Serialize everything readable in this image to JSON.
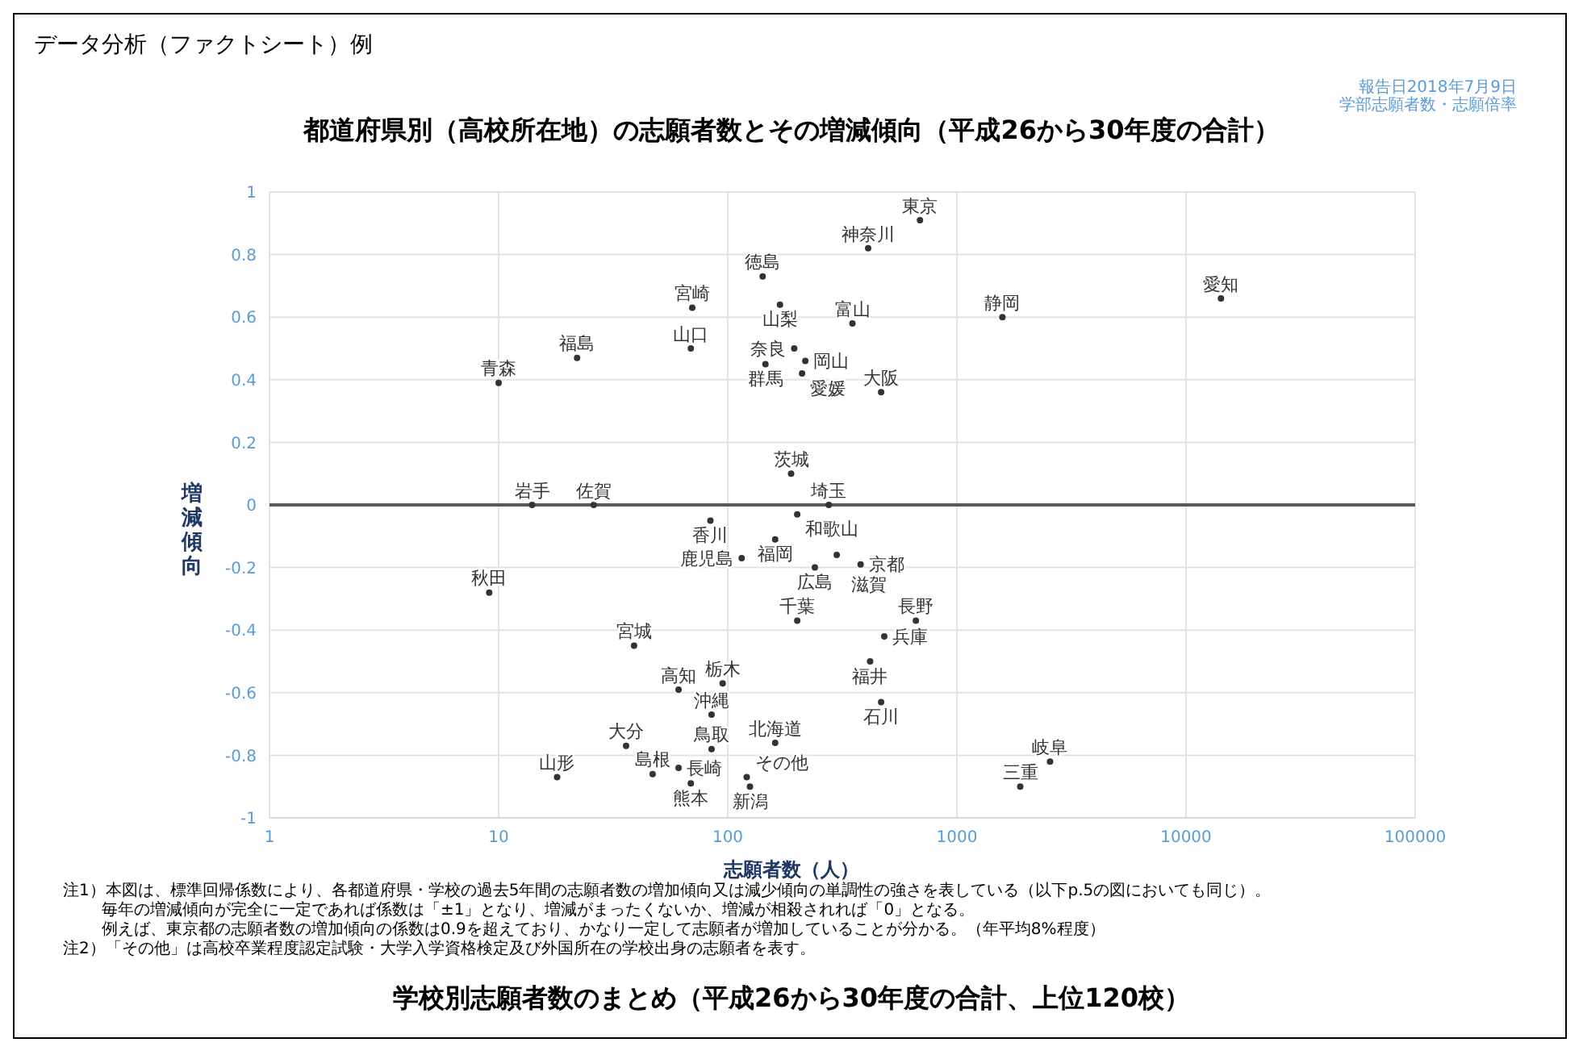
{
  "chart_data": {
    "type": "scatter",
    "title": "都道府県別（高校所在地）の志願者数とその増減傾向（平成26から30年度の合計）",
    "xlabel": "志願者数（人）",
    "ylabel": "増減傾向",
    "annotations": [
      "データ分析（ファクトシート）例",
      "報告日2018年7月9日",
      "学部志願者数・志願倍率",
      "注1）本図は、標準回帰係数により、各都道府県・学校の過去5年間の志願者数の増加傾向又は減少傾向の単調性の強さを表している（以下p.5の図においても同じ）。",
      "毎年の増減傾向が完全に一定であれば係数は「±1」となり、増減がまったくないか、増減が相殺されれば「0」となる。",
      "例えば、東京都の志願者数の増加傾向の係数は0.9を超えており、かなり一定して志願者が増加していることが分かる。（年平均8%程度）",
      "注2）「その他」は高校卒業程度認定試験・大学入学資格検定及び外国所在の学校出身の志願者を表す。",
      "学校別志願者数のまとめ（平成26から30年度の合計、上位120校）"
    ],
    "x": [
      690,
      410,
      142,
      169,
      70,
      350,
      1580,
      14200,
      22,
      69,
      195,
      146,
      218,
      211,
      467,
      10,
      189,
      14,
      26,
      84,
      201,
      276,
      161,
      115,
      240,
      299,
      380,
      9.1,
      201,
      662,
      482,
      418,
      39,
      61,
      95,
      467,
      85,
      161,
      36,
      85,
      18,
      47,
      61,
      69,
      121,
      125,
      2550,
      1890
    ],
    "values": [
      0.91,
      0.82,
      0.73,
      0.64,
      0.63,
      0.58,
      0.6,
      0.66,
      0.47,
      0.5,
      0.5,
      0.45,
      0.46,
      0.42,
      0.36,
      0.39,
      0.1,
      0,
      0,
      -0.05,
      -0.03,
      0,
      -0.11,
      -0.17,
      -0.2,
      -0.16,
      -0.19,
      -0.28,
      -0.37,
      -0.37,
      -0.42,
      -0.5,
      -0.45,
      -0.59,
      -0.57,
      -0.63,
      -0.67,
      -0.76,
      -0.77,
      -0.78,
      -0.87,
      -0.86,
      -0.84,
      -0.89,
      -0.87,
      -0.9,
      -0.82,
      -0.9
    ],
    "value_labels": [
      "東京",
      "神奈川",
      "徳島",
      "山梨",
      "宮崎",
      "富山",
      "静岡",
      "愛知",
      "福島",
      "山口",
      "奈良",
      "群馬",
      "岡山",
      "愛媛",
      "大阪",
      "青森",
      "茨城",
      "岩手",
      "佐賀",
      "香川",
      "和歌山",
      "埼玉",
      "福岡",
      "鹿児島",
      "広島",
      "滋賀",
      "京都",
      "秋田",
      "千葉",
      "長野",
      "兵庫",
      "福井",
      "宮城",
      "高知",
      "栃木",
      "石川",
      "沖縄",
      "北海道",
      "大分",
      "鳥取",
      "山形",
      "島根",
      "長崎",
      "熊本",
      "その他",
      "新潟",
      "岐阜",
      "三重"
    ],
    "color": "#333333",
    "marker": "circle",
    "log": "x",
    "grid": true,
    "xlim": [
      1,
      100000
    ],
    "xticks": [
      1,
      10,
      100,
      1000,
      10000,
      100000
    ],
    "ylim": [
      -1,
      1
    ],
    "yticks": [
      -1,
      -0.8,
      -0.6,
      -0.4,
      -0.2,
      0,
      0.2,
      0.4,
      0.6,
      0.8,
      1
    ],
    "ref_lines": [
      {
        "axis": "y",
        "value": 0,
        "color": "#595959"
      }
    ]
  }
}
